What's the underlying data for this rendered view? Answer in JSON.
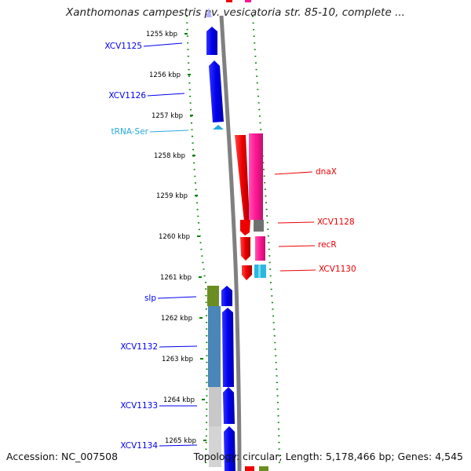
{
  "title": "Xanthomonas campestris pv. vesicatoria str. 85-10, complete ...",
  "footer": {
    "accession": "Accession: NC_007508",
    "summary": "Topology: circular; Length: 5,178,466 bp; Genes: 4,545"
  },
  "colors": {
    "cds": "#0000ee",
    "trna": "#29a8e0",
    "reverse_cds": "#ee0000",
    "gene_pink": "#ff1493",
    "gene_gray": "#707070",
    "gene_cyan": "#2ab8e0",
    "olive": "#6b8e23",
    "steelblue": "#4a86b8",
    "lightgray": "#c8c8c8",
    "ruler": "#008000",
    "backbone": "#808080"
  },
  "ruler": {
    "ticks": [
      "1255 kbp",
      "1256 kbp",
      "1257 kbp",
      "1258 kbp",
      "1259 kbp",
      "1260 kbp",
      "1261 kbp",
      "1262 kbp",
      "1263 kbp",
      "1264 kbp",
      "1265 kbp"
    ]
  },
  "left_features": [
    {
      "label": "XCV1125",
      "type": "cds"
    },
    {
      "label": "XCV1126",
      "type": "cds"
    },
    {
      "label": "tRNA-Ser",
      "type": "trna"
    },
    {
      "label": "slp",
      "type": "cds"
    },
    {
      "label": "XCV1132",
      "type": "cds"
    },
    {
      "label": "XCV1133",
      "type": "cds"
    },
    {
      "label": "XCV1134",
      "type": "cds"
    }
  ],
  "right_features": [
    {
      "label": "dnaX",
      "type": "reverse_cds"
    },
    {
      "label": "XCV1128",
      "type": "reverse_cds"
    },
    {
      "label": "recR",
      "type": "reverse_cds"
    },
    {
      "label": "XCV1130",
      "type": "reverse_cds"
    }
  ]
}
